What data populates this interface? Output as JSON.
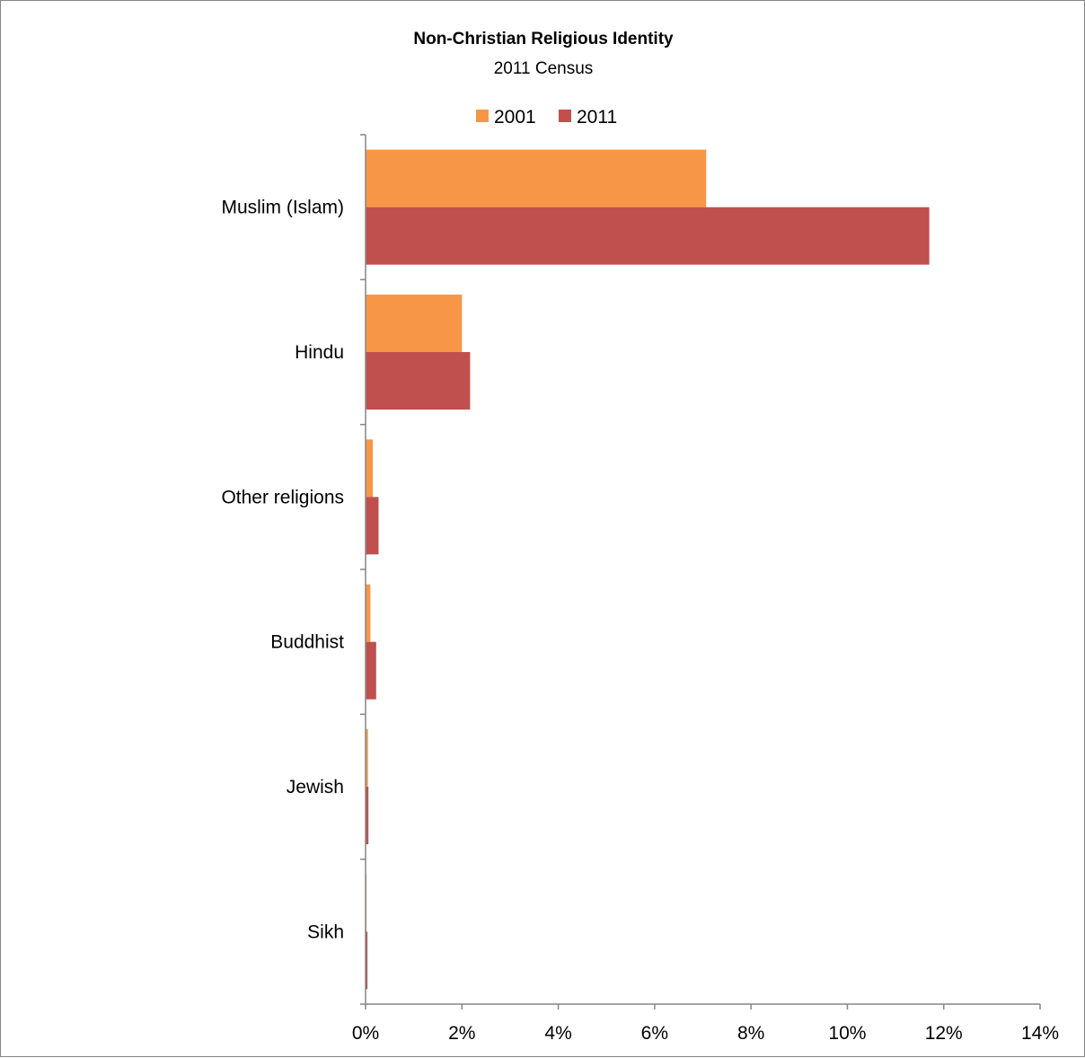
{
  "chart_data": {
    "type": "bar",
    "orientation": "horizontal",
    "title": "Non-Christian Religious Identity",
    "subtitle": "2011 Census",
    "categories": [
      "Muslim (Islam)",
      "Hindu",
      "Other religions",
      "Buddhist",
      "Jewish",
      "Sikh"
    ],
    "series": [
      {
        "name": "2001",
        "color": "#F79646",
        "values": [
          7.07,
          2.0,
          0.15,
          0.1,
          0.05,
          0.02
        ]
      },
      {
        "name": "2011",
        "color": "#C0504D",
        "values": [
          11.7,
          2.17,
          0.27,
          0.22,
          0.06,
          0.04
        ]
      }
    ],
    "xlim": [
      0,
      14
    ],
    "xticks": [
      0,
      2,
      4,
      6,
      8,
      10,
      12,
      14
    ],
    "xtick_labels": [
      "0%",
      "2%",
      "4%",
      "6%",
      "8%",
      "10%",
      "12%",
      "14%"
    ],
    "grid": false,
    "legend_position": "top"
  }
}
